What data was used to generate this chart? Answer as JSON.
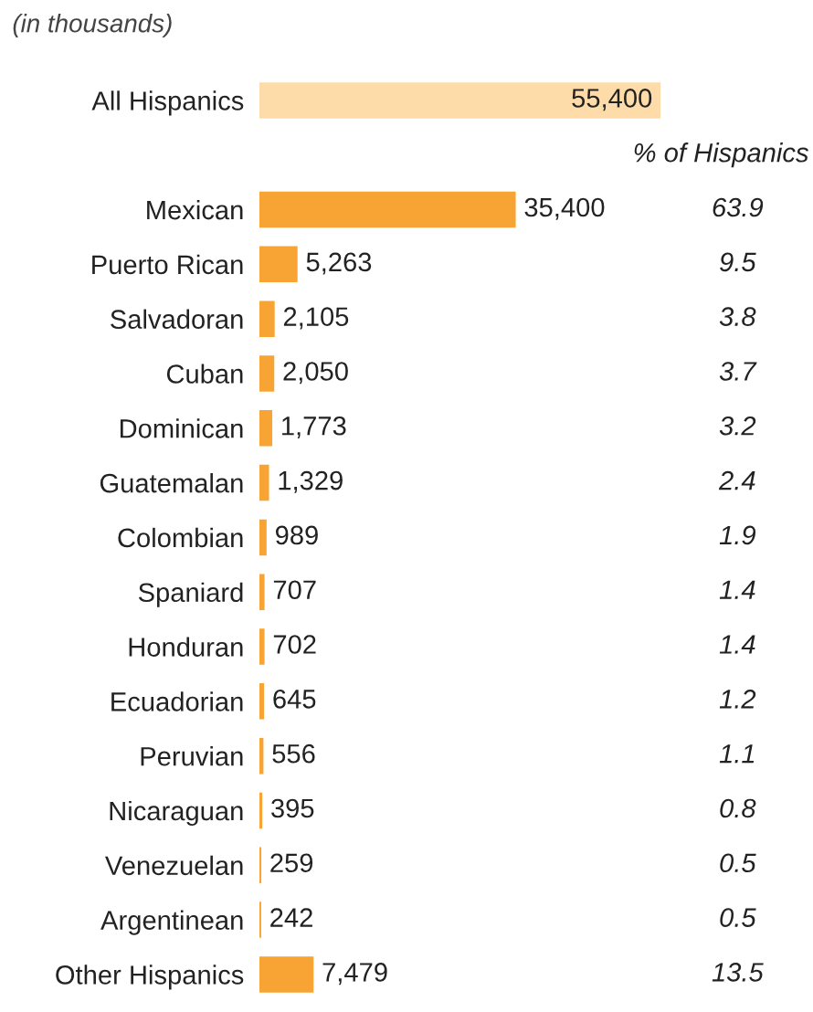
{
  "chart_data": {
    "type": "bar",
    "orientation": "horizontal",
    "title": "(in thousands)",
    "categories": [
      "All Hispanics",
      null,
      "Mexican",
      "Puerto Rican",
      "Salvadoran",
      "Cuban",
      "Dominican",
      "Guatemalan",
      "Colombian",
      "Spaniard",
      "Honduran",
      "Ecuadorian",
      "Peruvian",
      "Nicaraguan",
      "Venezuelan",
      "Argentinean",
      "Other Hispanics"
    ],
    "values": [
      55400,
      null,
      35400,
      5263,
      2105,
      2050,
      1773,
      1329,
      989,
      707,
      702,
      645,
      556,
      395,
      259,
      242,
      7479
    ],
    "value_labels": [
      "55,400",
      null,
      "35,400",
      "5,263",
      "2,105",
      "2,050",
      "1,773",
      "1,329",
      "989",
      "707",
      "702",
      "645",
      "556",
      "395",
      "259",
      "242",
      "7,479"
    ],
    "colors": [
      "#fddcaa",
      null,
      "#f8a434",
      "#f8a434",
      "#f8a434",
      "#f8a434",
      "#f8a434",
      "#f8a434",
      "#f8a434",
      "#f8a434",
      "#f8a434",
      "#f8a434",
      "#f8a434",
      "#f8a434",
      "#f8a434",
      "#f8a434",
      "#f8a434"
    ],
    "annotations": [
      "% of Hispanics",
      "63.9",
      "9.5",
      "3.8",
      "3.7",
      "3.2",
      "2.4",
      "1.9",
      "1.4",
      "1.4",
      "1.2",
      "1.1",
      "0.8",
      "0.5",
      "0.5",
      "13.5"
    ]
  }
}
